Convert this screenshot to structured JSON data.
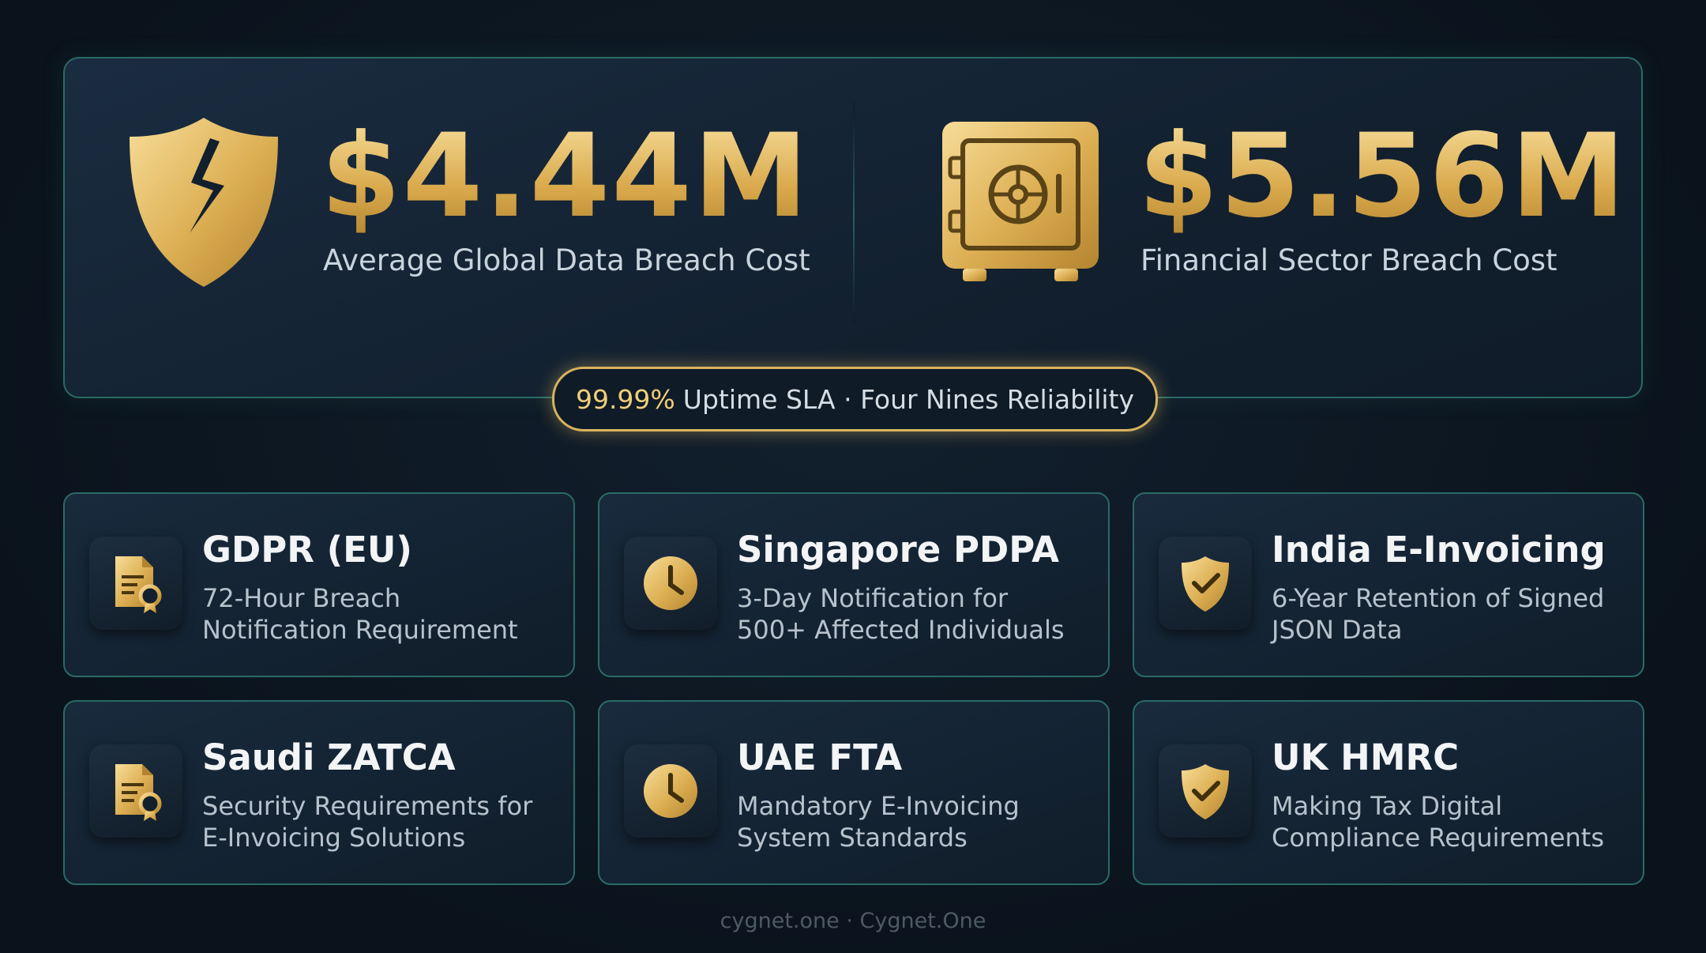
{
  "stats": [
    {
      "value": "$4.44M",
      "label": "Average Global Data Breach Cost"
    },
    {
      "value": "$5.56M",
      "label": "Financial Sector Breach Cost"
    }
  ],
  "badge": {
    "highlight": "99.99%",
    "text": "Uptime SLA · Four Nines Reliability"
  },
  "cards": [
    {
      "title": "GDPR (EU)",
      "description": "72-Hour Breach Notification Requirement"
    },
    {
      "title": "Singapore PDPA",
      "description": "3-Day Notification for 500+ Affected Individuals"
    },
    {
      "title": "India E-Invoicing",
      "description": "6-Year Retention of Signed JSON Data"
    },
    {
      "title": "Saudi ZATCA",
      "description": "Security Requirements for E-Invoicing Solutions"
    },
    {
      "title": "UAE FTA",
      "description": "Mandatory E-Invoicing System Standards"
    },
    {
      "title": "UK HMRC",
      "description": "Making Tax Digital Compliance Requirements"
    }
  ],
  "footer": "cygnet.one · Cygnet.One"
}
